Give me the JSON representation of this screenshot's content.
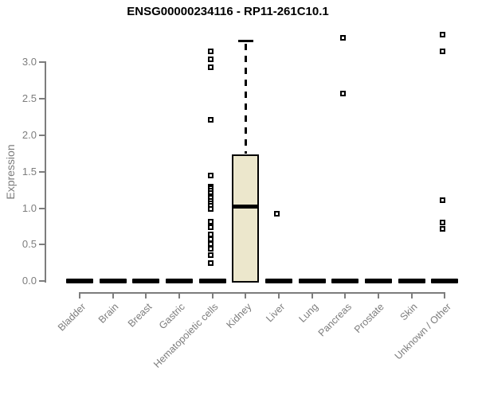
{
  "chart_data": {
    "type": "boxplot",
    "title": "ENSG00000234116 - RP11-261C10.1",
    "ylabel": "Expression",
    "xlabel": "",
    "ylim": [
      0,
      3.4
    ],
    "yticks": [
      "0.0",
      "0.5",
      "1.0",
      "1.5",
      "2.0",
      "2.5",
      "3.0"
    ],
    "grid": false,
    "legend": "none",
    "categories": [
      "Bladder",
      "Brain",
      "Breast",
      "Gastric",
      "Hematopoietic cells",
      "Kidney",
      "Liver",
      "Lung",
      "Pancreas",
      "Prostate",
      "Skin",
      "Unknown / Other"
    ],
    "series": [
      {
        "name": "Bladder",
        "q1": 0.0,
        "median": 0.0,
        "q3": 0.0,
        "whisker_low": 0.0,
        "whisker_high": 0.0,
        "outliers": []
      },
      {
        "name": "Brain",
        "q1": 0.0,
        "median": 0.0,
        "q3": 0.0,
        "whisker_low": 0.0,
        "whisker_high": 0.0,
        "outliers": []
      },
      {
        "name": "Breast",
        "q1": 0.0,
        "median": 0.0,
        "q3": 0.0,
        "whisker_low": 0.0,
        "whisker_high": 0.0,
        "outliers": []
      },
      {
        "name": "Gastric",
        "q1": 0.0,
        "median": 0.0,
        "q3": 0.0,
        "whisker_low": 0.0,
        "whisker_high": 0.0,
        "outliers": []
      },
      {
        "name": "Hematopoietic cells",
        "q1": 0.0,
        "median": 0.0,
        "q3": 0.0,
        "whisker_low": 0.0,
        "whisker_high": 0.0,
        "outliers": [
          3.15,
          3.04,
          2.93,
          2.21,
          1.45,
          1.3,
          1.27,
          1.24,
          1.21,
          1.17,
          1.14,
          1.1,
          1.07,
          1.03,
          0.99,
          0.82,
          0.74,
          0.64,
          0.58,
          0.51,
          0.44,
          0.36,
          0.25
        ]
      },
      {
        "name": "Kidney",
        "q1": 0.0,
        "median": 1.02,
        "q3": 1.74,
        "whisker_low": 0.0,
        "whisker_high": 3.29,
        "outliers": []
      },
      {
        "name": "Liver",
        "q1": 0.0,
        "median": 0.0,
        "q3": 0.0,
        "whisker_low": 0.0,
        "whisker_high": 0.0,
        "outliers": [
          0.92
        ]
      },
      {
        "name": "Lung",
        "q1": 0.0,
        "median": 0.0,
        "q3": 0.0,
        "whisker_low": 0.0,
        "whisker_high": 0.0,
        "outliers": []
      },
      {
        "name": "Pancreas",
        "q1": 0.0,
        "median": 0.0,
        "q3": 0.0,
        "whisker_low": 0.0,
        "whisker_high": 0.0,
        "outliers": [
          3.34,
          2.57
        ]
      },
      {
        "name": "Prostate",
        "q1": 0.0,
        "median": 0.0,
        "q3": 0.0,
        "whisker_low": 0.0,
        "whisker_high": 0.0,
        "outliers": []
      },
      {
        "name": "Skin",
        "q1": 0.0,
        "median": 0.0,
        "q3": 0.0,
        "whisker_low": 0.0,
        "whisker_high": 0.0,
        "outliers": []
      },
      {
        "name": "Unknown / Other",
        "q1": 0.0,
        "median": 0.0,
        "q3": 0.0,
        "whisker_low": 0.0,
        "whisker_high": 0.0,
        "outliers": [
          3.38,
          3.15,
          1.11,
          0.8,
          0.72
        ]
      }
    ],
    "colors": {
      "box_fill": "#ECE7CC",
      "box_border": "#000000",
      "median": "#000000",
      "point": "#000000",
      "axis": "#7d7d7d",
      "tick_label": "#7d7d7d",
      "title": "#000000"
    }
  }
}
